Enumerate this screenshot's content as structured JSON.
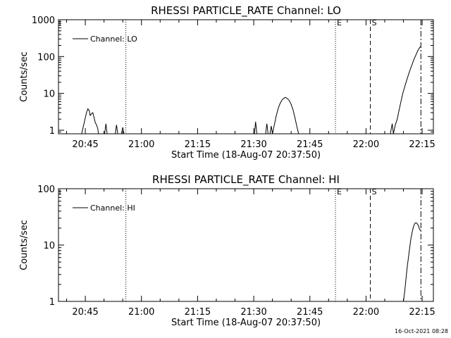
{
  "footer": {
    "timestamp": "16-Oct-2021 08:28"
  },
  "chart_data": [
    {
      "type": "line",
      "title": "RHESSI PARTICLE_RATE Channel: LO",
      "xlabel": "Start Time (18-Aug-07 20:37:50)",
      "ylabel": "Counts/sec",
      "yscale": "log",
      "xlim": [
        "20:37:50",
        "22:18:00"
      ],
      "ylim": [
        0.8,
        1000
      ],
      "yticks": [
        {
          "value": 1,
          "label": "1"
        },
        {
          "value": 10,
          "label": "10"
        },
        {
          "value": 100,
          "label": "100"
        },
        {
          "value": 1000,
          "label": "1000"
        }
      ],
      "xticks": [
        "20:45",
        "21:00",
        "21:15",
        "21:30",
        "21:45",
        "22:00",
        "22:15"
      ],
      "legend": {
        "placement": "top-left",
        "entries": [
          "Channel: LO"
        ]
      },
      "markers": [
        {
          "time": "20:55:50",
          "style": "dotted",
          "label": ""
        },
        {
          "time": "21:51:50",
          "style": "dotted",
          "label": "E"
        },
        {
          "time": "22:01:10",
          "style": "dashed",
          "label": "S"
        },
        {
          "time": "22:14:40",
          "style": "dashdot",
          "label": ""
        }
      ],
      "series": [
        {
          "name": "Channel: LO",
          "segments": [
            {
              "x": [
                "20:44:00",
                "20:44:30",
                "20:45:00",
                "20:45:20",
                "20:45:40",
                "20:46:00",
                "20:46:20",
                "20:46:40",
                "20:47:00",
                "20:47:20",
                "20:47:40",
                "20:48:00",
                "20:48:20",
                "20:48:30"
              ],
              "y": [
                0.8,
                1.3,
                2.2,
                3.0,
                3.8,
                3.5,
                2.5,
                2.8,
                3.0,
                2.2,
                1.6,
                1.4,
                1.1,
                0.8
              ]
            },
            {
              "x": [
                "20:50:10",
                "20:50:30",
                "20:50:50"
              ],
              "y": [
                0.8,
                1.5,
                0.8
              ]
            },
            {
              "x": [
                "20:53:00",
                "20:53:20",
                "20:53:40"
              ],
              "y": [
                0.8,
                1.4,
                0.8
              ]
            },
            {
              "x": [
                "20:54:40",
                "20:55:00",
                "20:55:20"
              ],
              "y": [
                0.8,
                1.2,
                0.8
              ]
            },
            {
              "x": [
                "21:30:10",
                "21:30:30",
                "21:30:50"
              ],
              "y": [
                0.8,
                1.7,
                0.8
              ]
            },
            {
              "x": [
                "21:33:10",
                "21:33:30",
                "21:33:50"
              ],
              "y": [
                0.8,
                1.5,
                0.8
              ]
            },
            {
              "x": [
                "21:34:20",
                "21:34:40",
                "21:35:00"
              ],
              "y": [
                0.8,
                1.3,
                0.8
              ]
            },
            {
              "x": [
                "21:35:00",
                "21:35:30",
                "21:36:00",
                "21:36:30",
                "21:37:00",
                "21:37:30",
                "21:38:00",
                "21:38:30",
                "21:39:00",
                "21:39:30",
                "21:40:00",
                "21:40:30",
                "21:41:00",
                "21:41:30",
                "21:42:00"
              ],
              "y": [
                0.8,
                1.4,
                2.4,
                3.8,
                5.2,
                6.5,
                7.4,
                7.8,
                7.2,
                6.4,
                5.0,
                3.6,
                2.2,
                1.3,
                0.8
              ]
            },
            {
              "x": [
                "22:06:30",
                "22:07:00",
                "22:07:20"
              ],
              "y": [
                0.8,
                1.5,
                0.8
              ]
            },
            {
              "x": [
                "22:07:20",
                "22:07:50",
                "22:08:20",
                "22:08:50",
                "22:09:20",
                "22:09:50",
                "22:10:20",
                "22:10:50",
                "22:11:20",
                "22:11:50",
                "22:12:20",
                "22:12:50",
                "22:13:20",
                "22:13:50",
                "22:14:20",
                "22:14:40"
              ],
              "y": [
                0.8,
                1.4,
                2.0,
                3.5,
                6.0,
                10,
                15,
                22,
                32,
                45,
                62,
                85,
                110,
                145,
                175,
                190
              ]
            }
          ]
        }
      ]
    },
    {
      "type": "line",
      "title": "RHESSI PARTICLE_RATE Channel: HI",
      "xlabel": "Start Time (18-Aug-07 20:37:50)",
      "ylabel": "Counts/sec",
      "yscale": "log",
      "xlim": [
        "20:37:50",
        "22:18:00"
      ],
      "ylim": [
        1,
        100
      ],
      "yticks": [
        {
          "value": 1,
          "label": "1"
        },
        {
          "value": 10,
          "label": "10"
        },
        {
          "value": 100,
          "label": "100"
        }
      ],
      "xticks": [
        "20:45",
        "21:00",
        "21:15",
        "21:30",
        "21:45",
        "22:00",
        "22:15"
      ],
      "legend": {
        "placement": "top-left",
        "entries": [
          "Channel: HI"
        ]
      },
      "markers": [
        {
          "time": "20:55:50",
          "style": "dotted",
          "label": ""
        },
        {
          "time": "21:51:50",
          "style": "dotted",
          "label": "E"
        },
        {
          "time": "22:01:10",
          "style": "dashed",
          "label": "S"
        },
        {
          "time": "22:14:40",
          "style": "dashdot",
          "label": ""
        }
      ],
      "series": [
        {
          "name": "Channel: HI",
          "segments": [
            {
              "x": [
                "22:10:00",
                "22:10:20",
                "22:10:40",
                "22:11:00",
                "22:11:20",
                "22:11:40",
                "22:12:00",
                "22:12:20",
                "22:12:40",
                "22:13:00",
                "22:13:20",
                "22:13:40",
                "22:14:00",
                "22:14:20",
                "22:14:40"
              ],
              "y": [
                1.0,
                1.5,
                2.5,
                4.0,
                6.0,
                9.0,
                13,
                17,
                21,
                24,
                25,
                24,
                22,
                19,
                18
              ]
            }
          ]
        }
      ]
    }
  ]
}
